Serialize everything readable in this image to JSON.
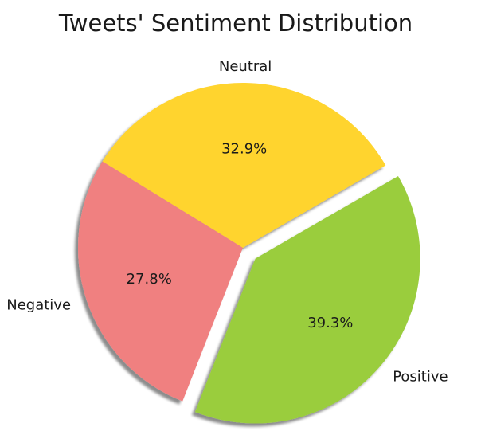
{
  "chart_data": {
    "type": "pie",
    "title": "Tweets' Sentiment Distribution",
    "slices": [
      {
        "label": "Neutral",
        "value": 32.9,
        "pct_label": "32.9%",
        "color": "#ffd42e",
        "explode": false
      },
      {
        "label": "Negative",
        "value": 27.8,
        "pct_label": "27.8%",
        "color": "#f08080",
        "explode": false
      },
      {
        "label": "Positive",
        "value": 39.3,
        "pct_label": "39.3%",
        "color": "#9acd3e",
        "explode": true
      }
    ],
    "shadow": true,
    "legend": "none"
  }
}
